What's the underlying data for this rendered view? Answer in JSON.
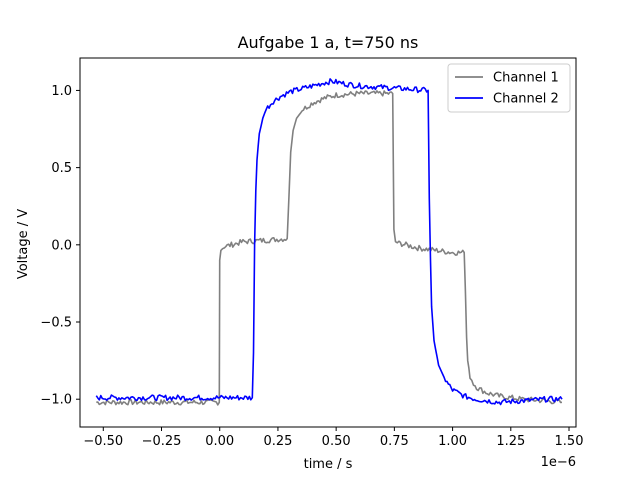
{
  "chart_data": {
    "type": "line",
    "title": "Aufgabe 1 a,  t=750 ns",
    "xlabel": "time / s",
    "ylabel": "Voltage / V",
    "x_scale_label": "1e−6",
    "x_scale_factor": 1e-06,
    "xlim": [
      -0.6,
      1.53
    ],
    "ylim": [
      -1.18,
      1.21
    ],
    "xticks": [
      -0.5,
      -0.25,
      0.0,
      0.25,
      0.5,
      0.75,
      1.0,
      1.25,
      1.5
    ],
    "xtick_labels": [
      "−0.50",
      "−0.25",
      "0.00",
      "0.25",
      "0.50",
      "0.75",
      "1.00",
      "1.25",
      "1.50"
    ],
    "yticks": [
      -1.0,
      -0.5,
      0.0,
      0.5,
      1.0
    ],
    "ytick_labels": [
      "−1.0",
      "−0.5",
      "0.0",
      "0.5",
      "1.0"
    ],
    "grid": false,
    "legend_position": "upper-right",
    "series": [
      {
        "name": "Channel 1",
        "color": "#808080",
        "x": [
          -0.53,
          -0.2,
          -0.002,
          0.0,
          0.005,
          0.02,
          0.05,
          0.1,
          0.2,
          0.29,
          0.305,
          0.315,
          0.33,
          0.36,
          0.4,
          0.45,
          0.5,
          0.6,
          0.7,
          0.743,
          0.748,
          0.755,
          0.77,
          0.8,
          0.85,
          0.9,
          0.95,
          1.0,
          1.05,
          1.055,
          1.06,
          1.065,
          1.075,
          1.09,
          1.11,
          1.15,
          1.2,
          1.3,
          1.4,
          1.47
        ],
        "y": [
          -1.02,
          -1.02,
          -1.02,
          -0.1,
          -0.03,
          -0.01,
          0.0,
          0.02,
          0.03,
          0.04,
          0.6,
          0.74,
          0.82,
          0.88,
          0.92,
          0.95,
          0.97,
          0.98,
          0.98,
          0.98,
          0.1,
          0.02,
          0.01,
          0.0,
          -0.02,
          -0.03,
          -0.04,
          -0.05,
          -0.05,
          -0.3,
          -0.6,
          -0.75,
          -0.85,
          -0.9,
          -0.93,
          -0.96,
          -0.98,
          -1.0,
          -1.01,
          -1.02
        ]
      },
      {
        "name": "Channel 2",
        "color": "#0000ff",
        "x": [
          -0.53,
          -0.2,
          0.0,
          0.14,
          0.145,
          0.15,
          0.155,
          0.16,
          0.17,
          0.185,
          0.2,
          0.23,
          0.26,
          0.3,
          0.35,
          0.4,
          0.45,
          0.48,
          0.55,
          0.6,
          0.7,
          0.8,
          0.895,
          0.9,
          0.905,
          0.91,
          0.92,
          0.94,
          0.97,
          1.0,
          1.05,
          1.1,
          1.2,
          1.3,
          1.4,
          1.47
        ],
        "y": [
          -0.99,
          -0.99,
          -0.99,
          -0.99,
          -0.7,
          0.0,
          0.35,
          0.55,
          0.72,
          0.82,
          0.88,
          0.93,
          0.96,
          0.99,
          1.01,
          1.03,
          1.05,
          1.06,
          1.04,
          1.03,
          1.02,
          1.01,
          1.0,
          0.3,
          -0.1,
          -0.4,
          -0.62,
          -0.78,
          -0.88,
          -0.94,
          -0.98,
          -1.0,
          -1.02,
          -1.01,
          -1.0,
          -1.0
        ]
      }
    ]
  }
}
